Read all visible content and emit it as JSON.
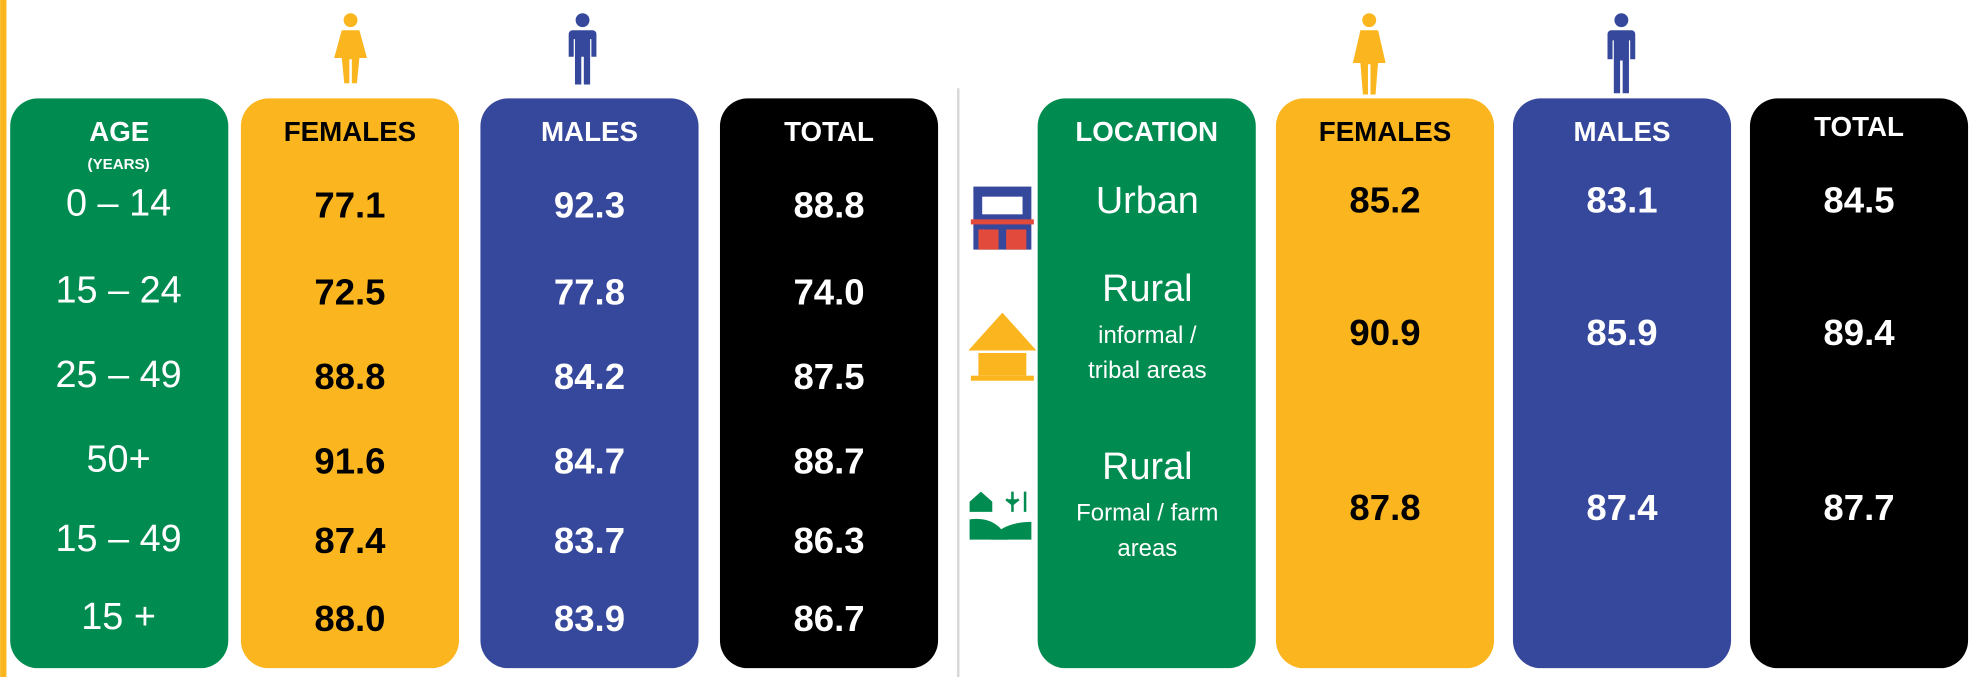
{
  "age_table": {
    "headers": {
      "age": "AGE",
      "age_unit": "(YEARS)",
      "females": "FEMALES",
      "males": "MALES",
      "total": "TOTAL"
    },
    "rows": [
      {
        "age": "0 – 14",
        "females": "77.1",
        "males": "92.3",
        "total": "88.8"
      },
      {
        "age": "15 – 24",
        "females": "72.5",
        "males": "77.8",
        "total": "74.0"
      },
      {
        "age": "25 – 49",
        "females": "88.8",
        "males": "84.2",
        "total": "87.5"
      },
      {
        "age": "50+",
        "females": "91.6",
        "males": "84.7",
        "total": "88.7"
      },
      {
        "age": "15 – 49",
        "females": "87.4",
        "males": "83.7",
        "total": "86.3"
      },
      {
        "age": "15 +",
        "females": "88.0",
        "males": "83.9",
        "total": "86.7"
      }
    ]
  },
  "location_table": {
    "headers": {
      "location": "LOCATION",
      "females": "FEMALES",
      "males": "MALES",
      "total": "TOTAL"
    },
    "rows": [
      {
        "location": "Urban",
        "sublabel_lines": [],
        "females": "85.2",
        "males": "83.1",
        "total": "84.5"
      },
      {
        "location": "Rural",
        "sublabel_lines": [
          "informal /",
          "tribal areas"
        ],
        "females": "90.9",
        "males": "85.9",
        "total": "89.4"
      },
      {
        "location": "Rural",
        "sublabel_lines": [
          "Formal / farm",
          "areas"
        ],
        "females": "87.8",
        "males": "87.4",
        "total": "87.7"
      }
    ]
  }
}
